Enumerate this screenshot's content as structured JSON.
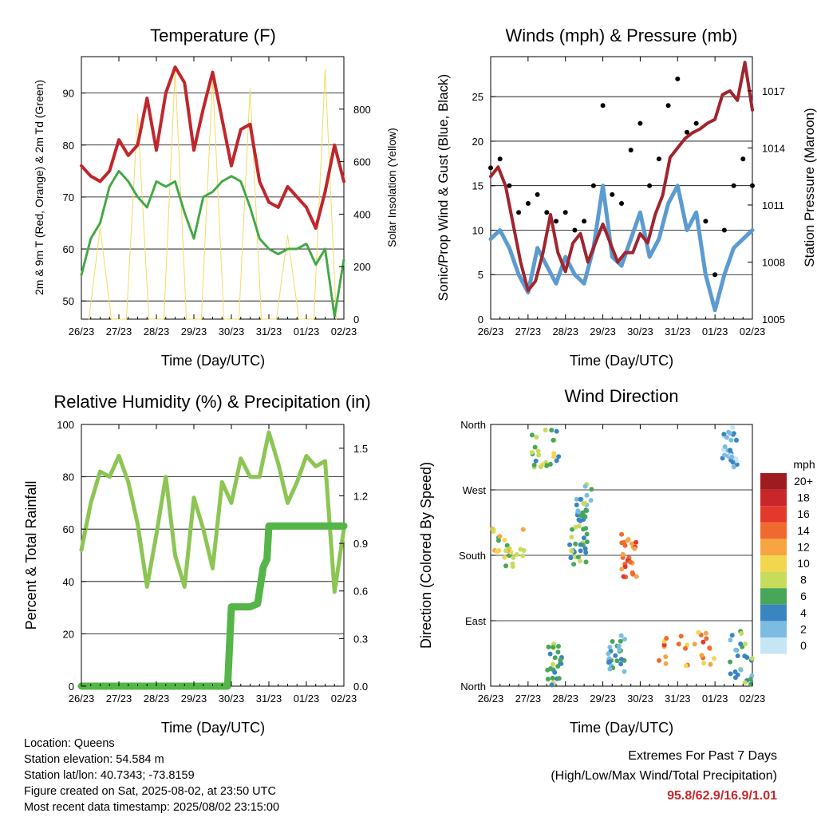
{
  "colors": {
    "temp_red": "#c0262c",
    "dew_green": "#43a843",
    "solar_yellow": "#f2dc60",
    "gust_black": "#000000",
    "wind_blue": "#5b9bd0",
    "pressure_maroon": "#a0252e",
    "rh_green": "#8cc553",
    "precip_green": "#55b548",
    "extremes_red": "#c8262b"
  },
  "panels": {
    "temperature": {
      "title": "Temperature (F)",
      "xlabel": "Time (Day/UTC)",
      "ylabel_left": "2m & 9m T (Red, Orange) & 2m Td (Green)",
      "ylabel_right": "Solar Insolation (Yellow)"
    },
    "winds": {
      "title": "Winds (mph) & Pressure (mb)",
      "xlabel": "Time (Day/UTC)",
      "ylabel_left": "Sonic/Prop Wind & Gust (Blue, Black)",
      "ylabel_right": "Station Pressure (Maroon)"
    },
    "humidity": {
      "title": "Relative Humidity (%) & Precipitation (in)",
      "xlabel": "Time (Day/UTC)",
      "ylabel_left": "Percent & Total Rainfall"
    },
    "direction": {
      "title": "Wind Direction",
      "xlabel": "Time (Day/UTC)",
      "ylabel_left": "Direction (Colored By Speed)",
      "legend_title": "mph",
      "legend_labels": [
        "20+",
        "18",
        "16",
        "14",
        "12",
        "10",
        "8",
        "6",
        "4",
        "2",
        "0"
      ],
      "legend_colors": [
        "#9e1b20",
        "#c8262b",
        "#e2392c",
        "#f06a2f",
        "#f7a443",
        "#f3d650",
        "#c7dc5c",
        "#48a65a",
        "#3a85c0",
        "#7cbce3",
        "#c6e6f6"
      ]
    }
  },
  "footer": {
    "location": "Location: Queens",
    "elevation": "Station elevation: 54.584 m",
    "latlon": "Station lat/lon: 40.7343; -73.8159",
    "created": "Figure created on Sat, 2025-08-02, at 23:50 UTC",
    "latest": "Most recent data timestamp: 2025/08/02 23:15:00",
    "extremes_line1": "Extremes For Past 7 Days",
    "extremes_line2": "(High/Low/Max Wind/Total Precipitation)",
    "extremes_values": "95.8/62.9/16.9/1.01"
  },
  "chart_data": [
    {
      "id": "temperature",
      "type": "line",
      "title": "Temperature (F)",
      "xlabel": "Time (Day/UTC)",
      "ylabel": "2m & 9m T (Red, Orange) & 2m Td (Green)",
      "ylabel_right": "Solar Insolation (Yellow)",
      "x_ticks": [
        "26/23",
        "27/23",
        "28/23",
        "29/23",
        "30/23",
        "31/23",
        "01/23",
        "02/23"
      ],
      "xlim": [
        0,
        7
      ],
      "ylim": [
        46.5,
        97
      ],
      "y_ticks": [
        50,
        60,
        70,
        80,
        90
      ],
      "ylim_right": [
        0,
        1000
      ],
      "y_ticks_right": [
        0,
        200,
        400,
        600,
        800
      ],
      "grid": "horizontal",
      "series": [
        {
          "name": "2m T",
          "color": "#c0262c",
          "axis": "left",
          "x": [
            0,
            0.25,
            0.5,
            0.75,
            1,
            1.25,
            1.5,
            1.75,
            2,
            2.25,
            2.5,
            2.75,
            3,
            3.25,
            3.5,
            3.75,
            4,
            4.25,
            4.5,
            4.75,
            5,
            5.25,
            5.5,
            5.75,
            6,
            6.25,
            6.5,
            6.75,
            7
          ],
          "values": [
            76,
            74,
            73,
            75,
            81,
            78,
            80,
            89,
            79,
            90,
            95,
            92,
            79,
            87,
            94,
            85,
            76,
            83,
            84,
            73,
            69,
            68,
            72,
            70,
            68,
            64,
            71,
            80,
            73
          ]
        },
        {
          "name": "2m Td",
          "color": "#43a843",
          "axis": "left",
          "x": [
            0,
            0.25,
            0.5,
            0.75,
            1,
            1.25,
            1.5,
            1.75,
            2,
            2.25,
            2.5,
            2.75,
            3,
            3.25,
            3.5,
            3.75,
            4,
            4.25,
            4.5,
            4.75,
            5,
            5.25,
            5.5,
            5.75,
            6,
            6.25,
            6.5,
            6.75,
            7
          ],
          "values": [
            55,
            62,
            65,
            72,
            75,
            73,
            70,
            68,
            73,
            72,
            73,
            67,
            62,
            70,
            71,
            73,
            74,
            73,
            68,
            62,
            60,
            59,
            60,
            60,
            61,
            57,
            60,
            47,
            58
          ]
        },
        {
          "name": "Solar Insolation",
          "color": "#f2dc60",
          "axis": "right",
          "x": [
            0.2,
            0.5,
            0.8,
            1.2,
            1.5,
            1.8,
            2.2,
            2.5,
            2.8,
            3.2,
            3.5,
            3.8,
            4.2,
            4.5,
            4.8,
            5.2,
            5.5,
            5.8,
            6.2,
            6.5,
            6.8
          ],
          "values": [
            0,
            350,
            0,
            0,
            780,
            0,
            0,
            950,
            0,
            0,
            920,
            0,
            0,
            880,
            0,
            0,
            320,
            0,
            0,
            950,
            0
          ]
        }
      ]
    },
    {
      "id": "winds",
      "type": "line",
      "title": "Winds (mph) & Pressure (mb)",
      "xlabel": "Time (Day/UTC)",
      "ylabel": "Sonic/Prop Wind & Gust (Blue, Black)",
      "ylabel_right": "Station Pressure (Maroon)",
      "x_ticks": [
        "26/23",
        "27/23",
        "28/23",
        "29/23",
        "30/23",
        "31/23",
        "01/23",
        "02/23"
      ],
      "xlim": [
        0,
        7
      ],
      "ylim": [
        0,
        29.5
      ],
      "y_ticks": [
        0,
        5,
        10,
        15,
        20,
        25
      ],
      "ylim_right": [
        1005,
        1018.8
      ],
      "y_ticks_right": [
        1005,
        1008,
        1011,
        1014,
        1017
      ],
      "grid": "horizontal",
      "series": [
        {
          "name": "Wind",
          "color": "#5b9bd0",
          "axis": "left",
          "x": [
            0,
            0.25,
            0.5,
            0.75,
            1,
            1.25,
            1.5,
            1.75,
            2,
            2.25,
            2.5,
            2.75,
            3,
            3.25,
            3.5,
            3.75,
            4,
            4.25,
            4.5,
            4.75,
            5,
            5.25,
            5.5,
            5.75,
            6,
            6.25,
            6.5,
            6.75,
            7
          ],
          "values": [
            9,
            10,
            8,
            5,
            3,
            8,
            6,
            4,
            7,
            5,
            4,
            8,
            15,
            7,
            6,
            9,
            12,
            7,
            9,
            13,
            15,
            10,
            12,
            5,
            1,
            5,
            8,
            9,
            10
          ]
        },
        {
          "name": "Gust",
          "color": "#000000",
          "axis": "left",
          "x": [
            0,
            0.25,
            0.5,
            0.75,
            1,
            1.25,
            1.5,
            1.75,
            2,
            2.25,
            2.5,
            2.75,
            3,
            3.25,
            3.5,
            3.75,
            4,
            4.25,
            4.5,
            4.75,
            5,
            5.25,
            5.5,
            5.75,
            6,
            6.25,
            6.5,
            6.75,
            7
          ],
          "values": [
            17,
            18,
            15,
            12,
            13,
            14,
            12,
            11,
            12,
            10,
            11,
            15,
            24,
            14,
            13,
            19,
            22,
            15,
            18,
            24,
            27,
            21,
            22,
            11,
            5,
            10,
            15,
            18,
            15
          ]
        },
        {
          "name": "Station Pressure",
          "color": "#a0252e",
          "axis": "right",
          "x": [
            0,
            0.2,
            0.4,
            0.6,
            0.8,
            1,
            1.2,
            1.4,
            1.6,
            1.8,
            2,
            2.2,
            2.4,
            2.6,
            2.8,
            3,
            3.2,
            3.4,
            3.6,
            3.8,
            4,
            4.2,
            4.4,
            4.6,
            4.8,
            5,
            5.2,
            5.4,
            5.6,
            5.8,
            6,
            6.2,
            6.4,
            6.6,
            6.8,
            7
          ],
          "values": [
            1012.5,
            1013,
            1012,
            1010,
            1008,
            1006.5,
            1007,
            1008.5,
            1010.5,
            1008.5,
            1007.5,
            1009,
            1009.5,
            1008,
            1009,
            1010,
            1009,
            1008,
            1008.5,
            1008.5,
            1009.5,
            1009,
            1010.5,
            1011.5,
            1013.5,
            1014,
            1014.5,
            1014.8,
            1015,
            1015.3,
            1015.5,
            1016.8,
            1017,
            1016.5,
            1018.5,
            1016
          ]
        }
      ]
    },
    {
      "id": "humidity",
      "type": "line",
      "title": "Relative Humidity (%) & Precipitation (in)",
      "xlabel": "Time (Day/UTC)",
      "ylabel": "Percent & Total Rainfall",
      "x_ticks": [
        "26/23",
        "27/23",
        "28/23",
        "29/23",
        "30/23",
        "31/23",
        "01/23",
        "02/23"
      ],
      "xlim": [
        0,
        7
      ],
      "ylim": [
        0,
        100
      ],
      "y_ticks": [
        0,
        20,
        40,
        60,
        80,
        100
      ],
      "ylim_right": [
        0,
        1.65
      ],
      "y_ticks_right": [
        0.0,
        0.3,
        0.6,
        0.9,
        1.2,
        1.5
      ],
      "grid": "horizontal",
      "series": [
        {
          "name": "Relative Humidity",
          "color": "#8cc553",
          "axis": "left",
          "x": [
            0,
            0.25,
            0.5,
            0.75,
            1,
            1.25,
            1.5,
            1.75,
            2,
            2.25,
            2.5,
            2.75,
            3,
            3.25,
            3.5,
            3.75,
            4,
            4.25,
            4.5,
            4.75,
            5,
            5.25,
            5.5,
            5.75,
            6,
            6.25,
            6.5,
            6.75,
            7
          ],
          "values": [
            52,
            70,
            82,
            80,
            88,
            78,
            62,
            38,
            58,
            80,
            50,
            38,
            72,
            60,
            45,
            78,
            70,
            87,
            80,
            80,
            97,
            85,
            70,
            78,
            88,
            84,
            86,
            36,
            60
          ]
        },
        {
          "name": "Total Precipitation",
          "color": "#55b548",
          "axis": "right",
          "x": [
            0,
            1,
            2,
            3,
            3.9,
            3.96,
            4.0,
            4.1,
            4.5,
            4.7,
            4.85,
            4.95,
            5.0,
            5.5,
            6,
            6.5,
            7
          ],
          "values": [
            0,
            0,
            0,
            0,
            0,
            0.3,
            0.5,
            0.5,
            0.5,
            0.52,
            0.75,
            0.8,
            1.01,
            1.01,
            1.01,
            1.01,
            1.01
          ]
        }
      ]
    },
    {
      "id": "direction",
      "type": "scatter",
      "title": "Wind Direction",
      "xlabel": "Time (Day/UTC)",
      "ylabel": "Direction (Colored By Speed)",
      "x_ticks": [
        "26/23",
        "27/23",
        "28/23",
        "29/23",
        "30/23",
        "31/23",
        "01/23",
        "02/23"
      ],
      "xlim": [
        0,
        7
      ],
      "ylim": [
        0,
        360
      ],
      "y_ticks": [
        0,
        90,
        180,
        270,
        360
      ],
      "y_tick_labels": [
        "North",
        "East",
        "South",
        "West",
        "North"
      ],
      "grid": "horizontal",
      "colorbar": {
        "label": "mph",
        "levels": [
          "20+",
          "18",
          "16",
          "14",
          "12",
          "10",
          "8",
          "6",
          "4",
          "2",
          "0"
        ]
      },
      "clusters": [
        {
          "x_range": [
            0,
            0.9
          ],
          "dir_range": [
            160,
            220
          ],
          "speed": 9
        },
        {
          "x_range": [
            1.1,
            1.9
          ],
          "dir_range": [
            300,
            360
          ],
          "speed": 7
        },
        {
          "x_range": [
            1.5,
            1.9
          ],
          "dir_range": [
            0,
            60
          ],
          "speed": 6
        },
        {
          "x_range": [
            2.1,
            2.6
          ],
          "dir_range": [
            165,
            220
          ],
          "speed": 6
        },
        {
          "x_range": [
            2.3,
            2.7
          ],
          "dir_range": [
            220,
            280
          ],
          "speed": 5
        },
        {
          "x_range": [
            3.5,
            3.9
          ],
          "dir_range": [
            150,
            210
          ],
          "speed": 14
        },
        {
          "x_range": [
            3.1,
            3.6
          ],
          "dir_range": [
            20,
            70
          ],
          "speed": 4
        },
        {
          "x_range": [
            4.5,
            6.0
          ],
          "dir_range": [
            25,
            75
          ],
          "speed": 13
        },
        {
          "x_range": [
            6.2,
            6.6
          ],
          "dir_range": [
            300,
            360
          ],
          "speed": 2
        },
        {
          "x_range": [
            6.4,
            7.0
          ],
          "dir_range": [
            0,
            80
          ],
          "speed": 5
        }
      ]
    }
  ]
}
